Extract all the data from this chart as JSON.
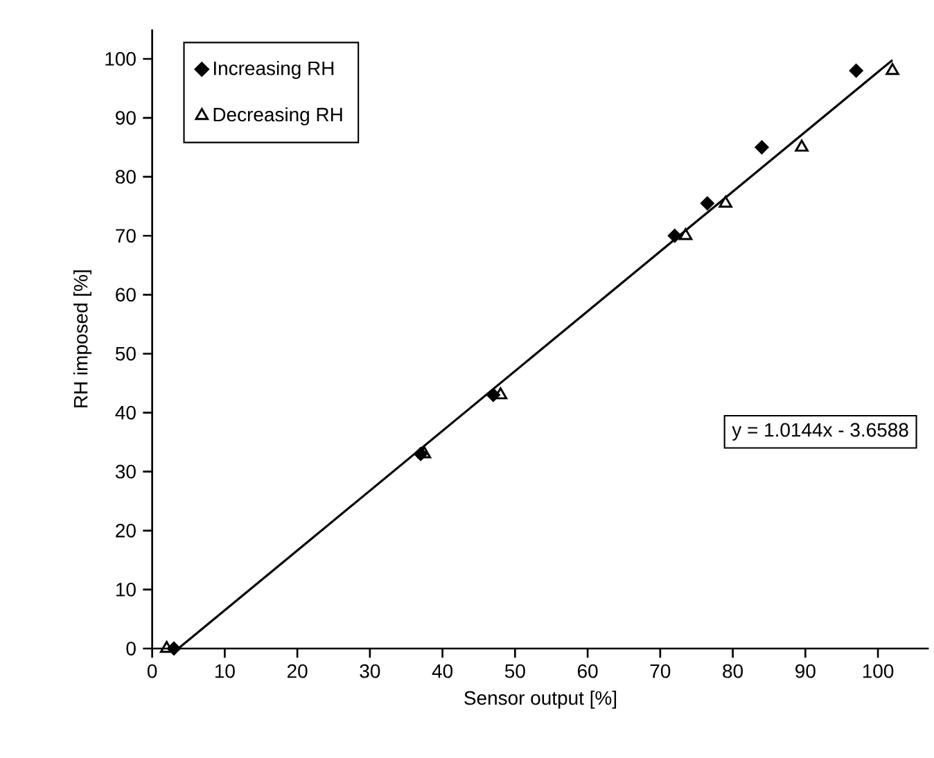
{
  "chart_data": {
    "type": "scatter",
    "xlabel": "Sensor output [%]",
    "ylabel": "RH imposed [%]",
    "xlim": [
      0,
      107
    ],
    "ylim": [
      0,
      105
    ],
    "xticks": [
      0,
      10,
      20,
      30,
      40,
      50,
      60,
      70,
      80,
      90,
      100
    ],
    "yticks": [
      0,
      10,
      20,
      30,
      40,
      50,
      60,
      70,
      80,
      90,
      100
    ],
    "legend": "top left",
    "grid": false,
    "annotations": [
      "y = 1.0144x - 3.6588"
    ],
    "series": [
      {
        "name": "Increasing RH",
        "marker": "diamond",
        "color": "#000000",
        "x": [
          3,
          37,
          47,
          72,
          76.5,
          84,
          97
        ],
        "values": [
          0,
          33,
          43,
          70,
          75.5,
          85,
          98
        ]
      },
      {
        "name": "Decreasing RH",
        "marker": "triangle",
        "color": "#000000",
        "x": [
          2,
          37.5,
          48,
          73.5,
          79,
          89.5,
          102
        ],
        "values": [
          0,
          33,
          43,
          70,
          75.5,
          85,
          98
        ]
      },
      {
        "type": "line",
        "color": "#000000",
        "marker": "none",
        "x": [
          3.6,
          102
        ],
        "values": [
          0,
          99.8
        ]
      }
    ]
  }
}
